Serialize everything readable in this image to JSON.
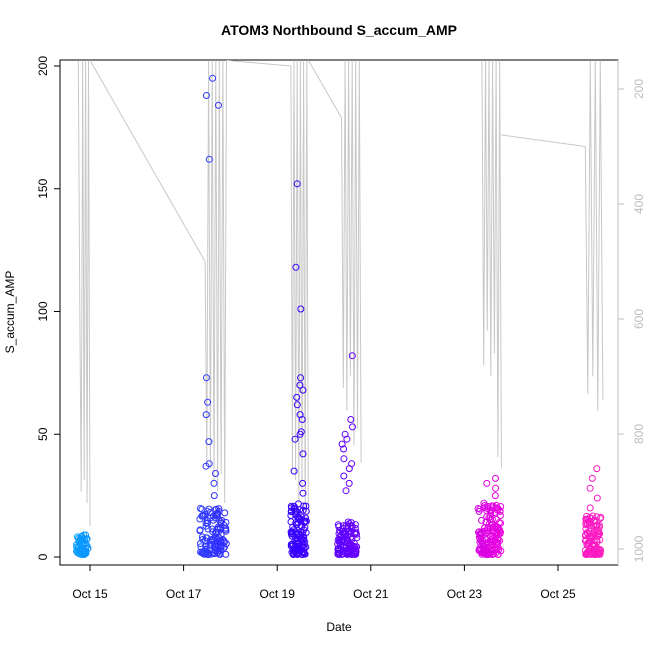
{
  "chart_data": {
    "type": "scatter",
    "title": "ATOM3 Northbound S_accum_AMP",
    "xlabel": "Date",
    "ylabel": "S_accum_AMP",
    "x_ticks": [
      "Oct 15",
      "Oct 17",
      "Oct 19",
      "Oct 21",
      "Oct 23",
      "Oct 25"
    ],
    "y_ticks": [
      0,
      50,
      100,
      150,
      200
    ],
    "y_right_ticks": [
      200,
      400,
      600,
      800,
      1000
    ],
    "xlim": [
      "2019-10-14 08:00",
      "2019-10-26 06:00"
    ],
    "ylim": [
      0,
      200
    ],
    "y_right_lim": [
      1040,
      150
    ],
    "grid": false,
    "colors": {
      "axis": "#000000",
      "right_axis": "#bdbdbd",
      "depth_line": "#c8c8c8",
      "point_gradient": [
        "#00aaff",
        "#3355ff",
        "#2b00ff",
        "#8a00ff",
        "#ee00dd",
        "#ff22bb"
      ]
    },
    "series": [
      {
        "kind": "points",
        "clusters": [
          {
            "center": "2019-10-14 20:00",
            "spread_h": 3,
            "count": 60,
            "y_range": [
              1,
              9
            ],
            "outliers": []
          },
          {
            "center": "2019-10-17 15:00",
            "spread_h": 7,
            "count": 120,
            "y_range": [
              1,
              20
            ],
            "outliers": [
              25,
              30,
              34,
              37,
              38,
              47,
              58,
              63,
              73,
              162,
              184,
              188,
              195
            ]
          },
          {
            "center": "2019-10-19 11:00",
            "spread_h": 4,
            "count": 110,
            "y_range": [
              1,
              22
            ],
            "outliers": [
              26,
              30,
              35,
              42,
              48,
              50,
              51,
              56,
              58,
              62,
              65,
              68,
              70,
              73,
              101,
              118,
              152
            ]
          },
          {
            "center": "2019-10-20 12:00",
            "spread_h": 5,
            "count": 110,
            "y_range": [
              1,
              15
            ],
            "outliers": [
              27,
              30,
              33,
              36,
              38,
              40,
              44,
              46,
              48,
              50,
              53,
              56,
              82
            ]
          },
          {
            "center": "2019-10-23 13:00",
            "spread_h": 6,
            "count": 140,
            "y_range": [
              1,
              22
            ],
            "outliers": [
              25,
              28,
              30,
              32
            ]
          },
          {
            "center": "2019-10-25 18:00",
            "spread_h": 4,
            "count": 110,
            "y_range": [
              1,
              17
            ],
            "outliers": [
              20,
              24,
              28,
              32,
              36
            ]
          }
        ]
      },
      {
        "kind": "depth_line",
        "y_axis": "right",
        "segments": [
          {
            "t0": "2019-10-14 18:00",
            "t1": "2019-10-15 00:00",
            "depths": [
              150,
              580,
              900,
              150,
              880,
              150,
              920,
              150,
              960
            ]
          },
          {
            "t0": "2019-10-15 00:00",
            "t1": "2019-10-17 11:00",
            "depths": [
              150,
              500
            ]
          },
          {
            "t0": "2019-10-17 11:00",
            "t1": "2019-10-17 22:00",
            "depths": [
              500,
              850,
              150,
              860,
              150,
              880,
              150,
              900,
              150,
              870,
              150,
              920,
              150
            ]
          },
          {
            "t0": "2019-10-17 22:00",
            "t1": "2019-10-19 07:00",
            "depths": [
              150,
              160
            ]
          },
          {
            "t0": "2019-10-19 07:00",
            "t1": "2019-10-19 16:00",
            "depths": [
              160,
              860,
              150,
              880,
              150,
              920,
              150,
              900,
              150,
              940,
              150,
              960
            ]
          },
          {
            "t0": "2019-10-19 16:00",
            "t1": "2019-10-20 09:00",
            "depths": [
              150,
              250
            ]
          },
          {
            "t0": "2019-10-20 09:00",
            "t1": "2019-10-20 19:00",
            "depths": [
              250,
              720,
              150,
              760,
              150,
              700,
              150,
              820,
              150,
              790,
              150,
              850
            ]
          },
          {
            "t0": "2019-10-23 09:00",
            "t1": "2019-10-23 19:00",
            "depths": [
              150,
              680,
              150,
              620,
              150,
              700,
              150,
              660,
              150,
              840,
              150,
              860
            ]
          },
          {
            "t0": "2019-10-23 19:00",
            "t1": "2019-10-25 14:00",
            "depths": [
              280,
              300
            ]
          },
          {
            "t0": "2019-10-25 14:00",
            "t1": "2019-10-25 23:00",
            "depths": [
              300,
              730,
              150,
              700,
              150,
              760,
              150,
              740
            ]
          }
        ]
      }
    ]
  }
}
